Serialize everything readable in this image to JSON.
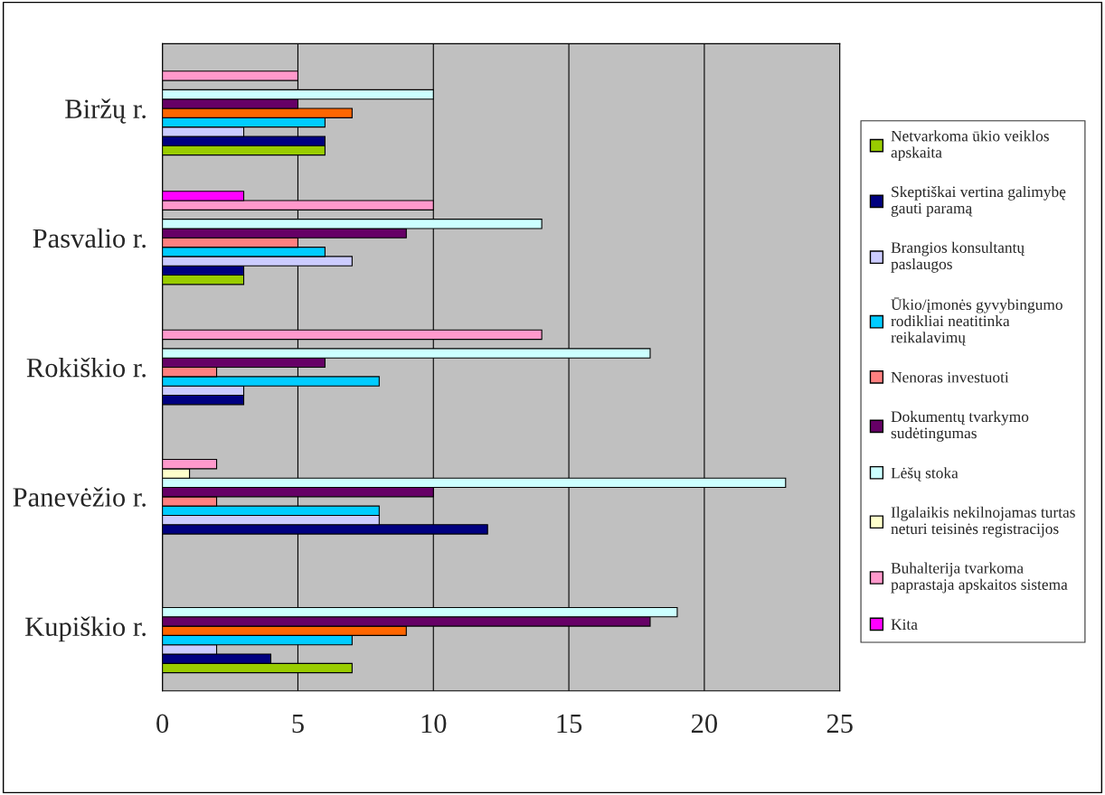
{
  "chart_data": {
    "type": "bar",
    "orientation": "horizontal",
    "categories": [
      "Biržų r.",
      "Pasvalio r.",
      "Rokiškio r.",
      "Panevėžio r.",
      "Kupiškio r."
    ],
    "series": [
      {
        "name": "Netvarkoma ūkio veiklos\napskaita",
        "color": "#99cc00",
        "values": [
          6,
          3,
          null,
          null,
          7
        ]
      },
      {
        "name": "Skeptiškai vertina galimybę\ngauti paramą",
        "color": "#000080",
        "values": [
          6,
          3,
          3,
          12,
          4
        ]
      },
      {
        "name": "Brangios konsultantų\npaslaugos",
        "color": "#ccccff",
        "values": [
          3,
          7,
          3,
          8,
          2
        ]
      },
      {
        "name": "Ūkio/įmonės gyvybingumo\nrodikliai neatitinka\nreikalavimų",
        "color": "#00ccff",
        "values": [
          6,
          6,
          8,
          8,
          7
        ]
      },
      {
        "name": "Nenoras investuoti",
        "color": "#ff8080",
        "colors": [
          "#ff6600",
          "#ff8080",
          "#ff8080",
          "#ff8080",
          "#ff6600"
        ],
        "values": [
          7,
          5,
          2,
          2,
          9
        ]
      },
      {
        "name": "Dokumentų tvarkymo\nsudėtingumas",
        "color": "#660066",
        "values": [
          5,
          9,
          6,
          10,
          18
        ]
      },
      {
        "name": "Lėšų stoka",
        "color": "#ccffff",
        "values": [
          10,
          14,
          18,
          23,
          19
        ]
      },
      {
        "name": "Ilgalaikis nekilnojamas turtas\nneturi teisinės registracijos",
        "color": "#ffffcc",
        "values": [
          null,
          null,
          null,
          1,
          null
        ]
      },
      {
        "name": "Buhalterija tvarkoma\npaprastaja apskaitos sistema",
        "color": "#ff99cc",
        "values": [
          5,
          10,
          14,
          2,
          null
        ]
      },
      {
        "name": "Kita",
        "color": "#ff00ff",
        "values": [
          null,
          3,
          null,
          null,
          null
        ]
      }
    ],
    "xlim": [
      0,
      25
    ],
    "xticks": [
      0,
      5,
      10,
      15,
      20,
      25
    ],
    "grid": "x",
    "legend": "right"
  }
}
